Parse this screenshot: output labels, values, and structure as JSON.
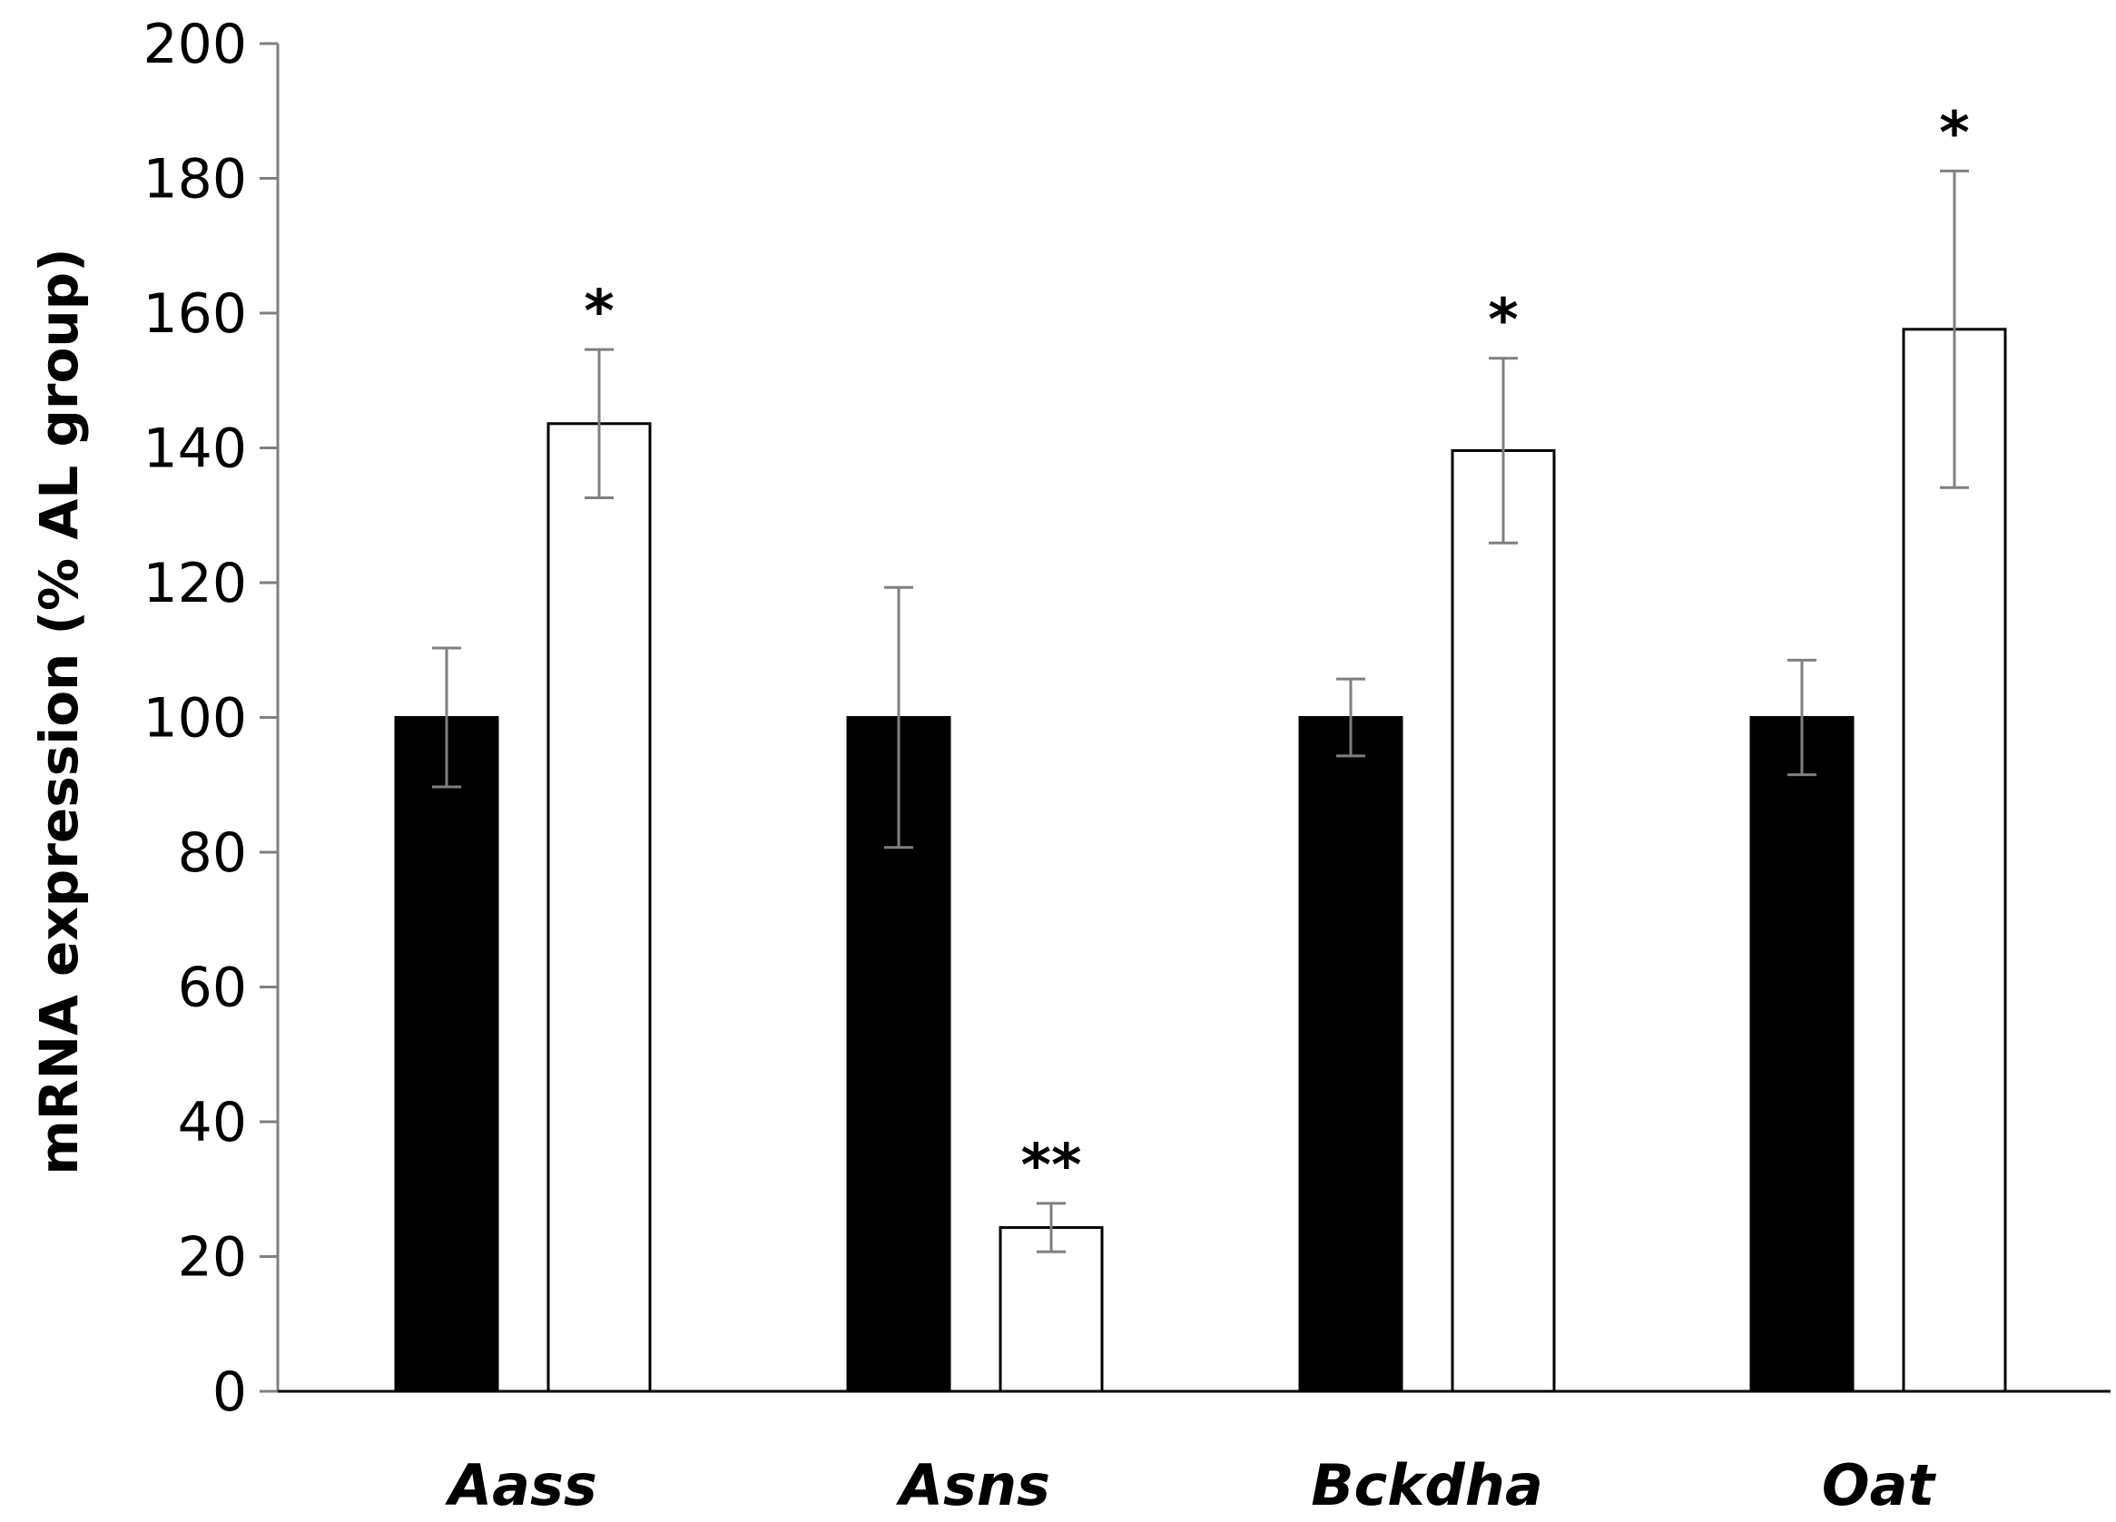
{
  "chart_data": {
    "type": "bar",
    "title": "",
    "xlabel": "",
    "ylabel": "mRNA expression (% AL group)",
    "ylim": [
      0,
      200
    ],
    "yticks": [
      0,
      20,
      40,
      60,
      80,
      100,
      120,
      140,
      160,
      180,
      200
    ],
    "grid": false,
    "legend": "none",
    "categories": [
      "Aass",
      "Asns",
      "Bckdha",
      "Oat"
    ],
    "series": [
      {
        "fill": "#000000",
        "values": [
          100,
          100,
          100,
          100
        ],
        "errors": [
          10.3,
          19.3,
          5.7,
          8.5
        ],
        "annotations": [
          "",
          "",
          "",
          ""
        ]
      },
      {
        "fill": "#ffffff",
        "values": [
          143.6,
          24.3,
          139.6,
          157.6
        ],
        "errors": [
          11.0,
          3.6,
          13.7,
          23.5
        ],
        "annotations": [
          "*",
          "**",
          "*",
          "*"
        ]
      }
    ]
  }
}
